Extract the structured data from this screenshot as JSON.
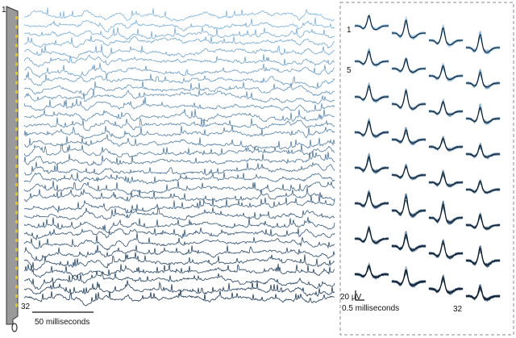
{
  "probe": {
    "top_label": "1",
    "bottom_label": "32"
  },
  "traces": {
    "scale_label": "50 milliseconds"
  },
  "waveforms": {
    "first_label": "1",
    "fifth_label": "5",
    "last_label": "32",
    "scale_voltage": "20 µV",
    "scale_time": "0.5 milliseconds"
  }
}
